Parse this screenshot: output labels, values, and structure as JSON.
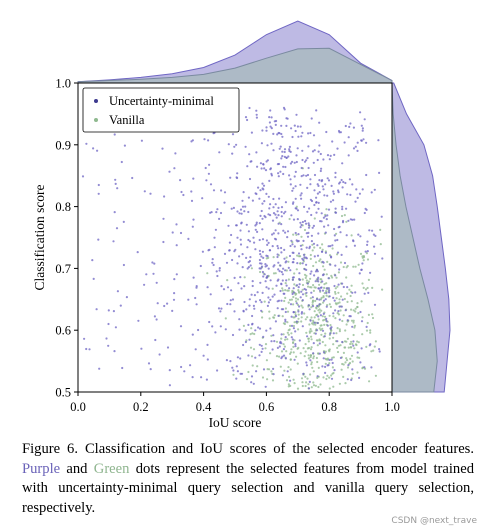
{
  "chart_data": {
    "type": "scatter",
    "title": "",
    "xlabel": "IoU score",
    "ylabel": "Classification score",
    "xlim": [
      0.0,
      1.0
    ],
    "ylim": [
      0.5,
      1.0
    ],
    "x_ticks": [
      "0.0",
      "0.2",
      "0.4",
      "0.6",
      "0.8",
      "1.0"
    ],
    "y_ticks": [
      "0.5",
      "0.6",
      "0.7",
      "0.8",
      "0.9",
      "1.0"
    ],
    "legend_position": "top-left",
    "grid": false,
    "marginals": "kde density curves on top (IoU) and right (Classification)",
    "series": [
      {
        "name": "Uncertainty-minimal",
        "color": "#6f66c4",
        "distribution": {
          "x_mean": 0.68,
          "x_sd": 0.14,
          "y_mean": 0.75,
          "y_sd": 0.13
        },
        "top_marginal_density": [
          [
            0.0,
            0.02
          ],
          [
            0.1,
            0.05
          ],
          [
            0.2,
            0.09
          ],
          [
            0.3,
            0.15
          ],
          [
            0.4,
            0.25
          ],
          [
            0.5,
            0.45
          ],
          [
            0.6,
            0.78
          ],
          [
            0.7,
            1.0
          ],
          [
            0.8,
            0.78
          ],
          [
            0.9,
            0.32
          ],
          [
            1.0,
            0.04
          ]
        ],
        "right_marginal_density": [
          [
            0.5,
            0.9
          ],
          [
            0.55,
            0.95
          ],
          [
            0.6,
            1.0
          ],
          [
            0.65,
            0.98
          ],
          [
            0.7,
            0.92
          ],
          [
            0.75,
            0.85
          ],
          [
            0.8,
            0.78
          ],
          [
            0.85,
            0.7
          ],
          [
            0.9,
            0.55
          ],
          [
            0.95,
            0.25
          ],
          [
            1.0,
            0.03
          ]
        ]
      },
      {
        "name": "Vanilla",
        "color": "#8fb98f",
        "distribution": {
          "x_mean": 0.76,
          "x_sd": 0.1,
          "y_mean": 0.6,
          "y_sd": 0.08
        },
        "top_marginal_density": [
          [
            0.0,
            0.02
          ],
          [
            0.1,
            0.04
          ],
          [
            0.2,
            0.06
          ],
          [
            0.3,
            0.09
          ],
          [
            0.4,
            0.14
          ],
          [
            0.5,
            0.24
          ],
          [
            0.6,
            0.4
          ],
          [
            0.7,
            0.55
          ],
          [
            0.8,
            0.56
          ],
          [
            0.9,
            0.3
          ],
          [
            1.0,
            0.04
          ]
        ],
        "right_marginal_density": [
          [
            0.5,
            0.72
          ],
          [
            0.55,
            0.78
          ],
          [
            0.6,
            0.74
          ],
          [
            0.65,
            0.62
          ],
          [
            0.7,
            0.48
          ],
          [
            0.75,
            0.36
          ],
          [
            0.8,
            0.24
          ],
          [
            0.85,
            0.14
          ],
          [
            0.9,
            0.07
          ],
          [
            0.95,
            0.02
          ],
          [
            1.0,
            0.0
          ]
        ]
      }
    ]
  },
  "legend": {
    "items": [
      {
        "label": "Uncertainty-minimal",
        "color": "#3d3a8f"
      },
      {
        "label": "Vanilla",
        "color": "#8fb98f"
      }
    ]
  },
  "caption": {
    "prefix": "Figure 6.  Classification and IoU scores of the selected encoder features. ",
    "purple_word": "Purple",
    "and_word": " and ",
    "green_word": "Green",
    "suffix": " dots represent the selected features from model trained with uncertainty-minimal query selection and vanilla query selection, respectively."
  },
  "watermark": "CSDN @next_trave"
}
